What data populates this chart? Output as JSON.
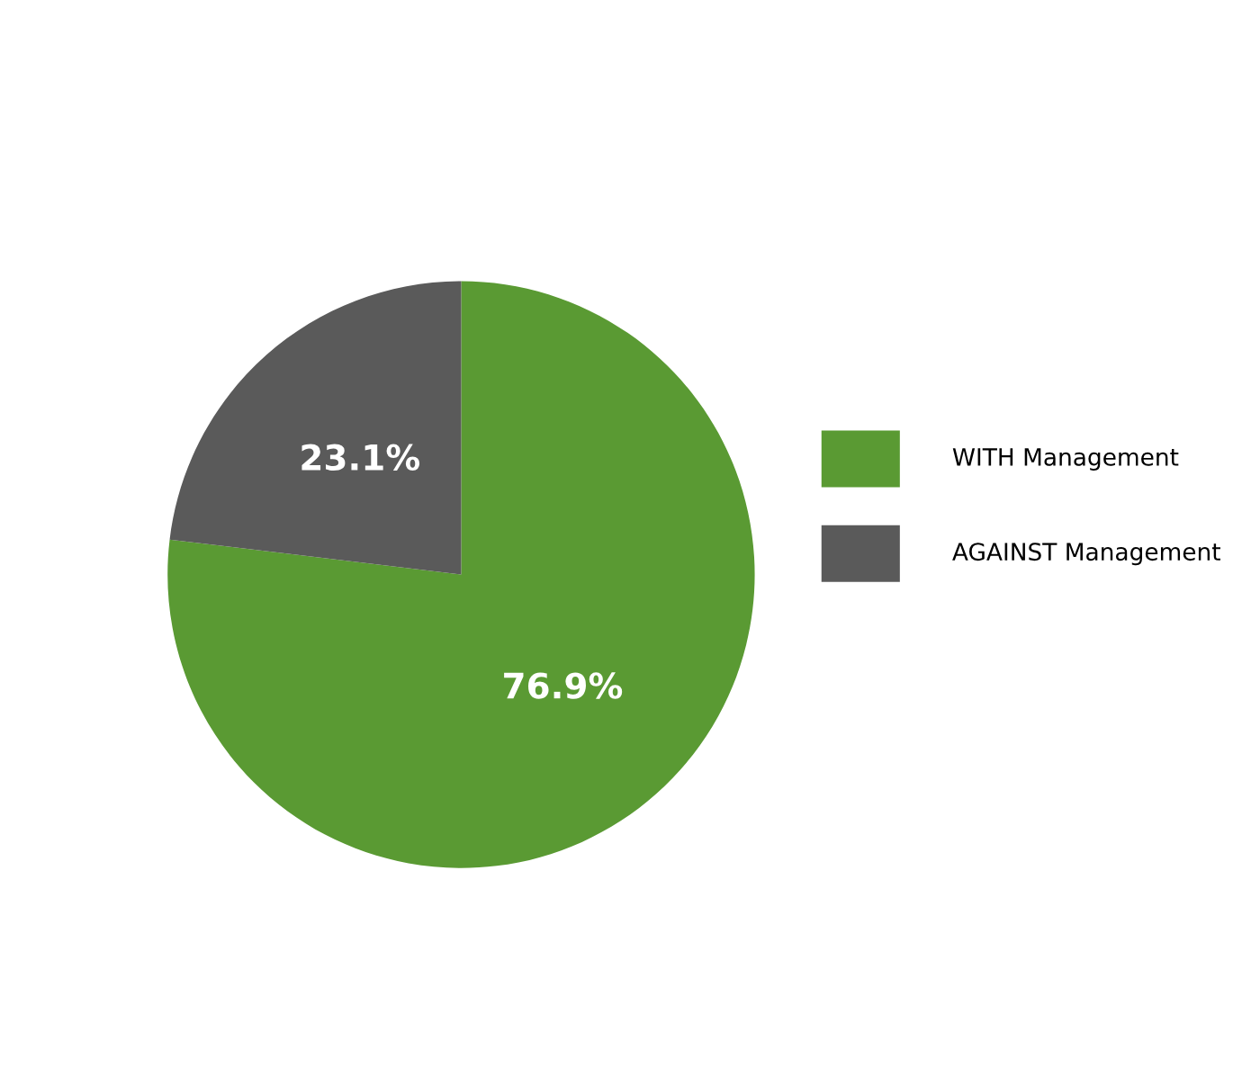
{
  "chart_data": {
    "type": "pie",
    "categories": [
      "WITH Management",
      "AGAINST Management"
    ],
    "values": [
      76.9,
      23.1
    ],
    "colors": [
      "#5a9a33",
      "#5a5a5a"
    ],
    "value_labels": [
      "76.9%",
      "23.1%"
    ],
    "legend": "right"
  }
}
